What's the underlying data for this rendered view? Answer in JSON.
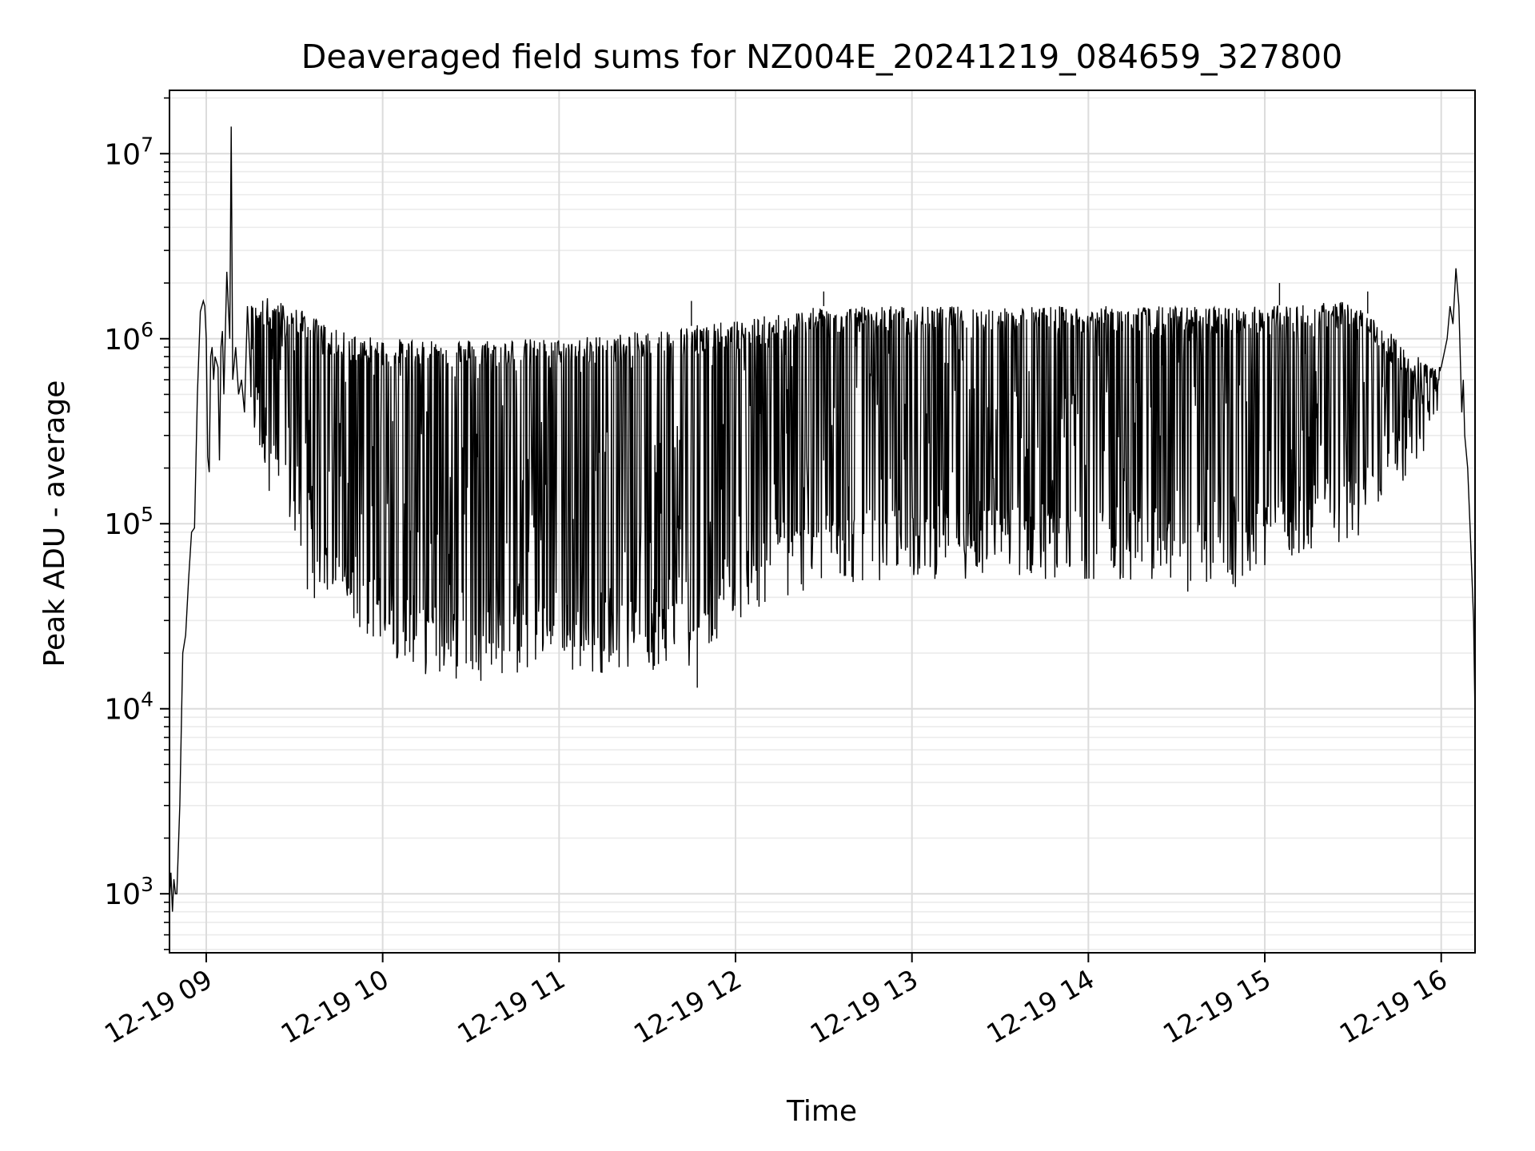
{
  "chart_data": {
    "type": "line",
    "title": "Deaveraged field sums for NZ004E_20241219_084659_327800",
    "xlabel": "Time",
    "ylabel": "Peak ADU - average",
    "y_scale": "log",
    "ylim": [
      480,
      22000000
    ],
    "xlim": [
      "2024-12-19 08:47:30",
      "2024-12-19 16:11:30"
    ],
    "grid": true,
    "legend": "none",
    "line_color": "#000000",
    "x_ticks": [
      {
        "value": "2024-12-19 09:00",
        "label": "12-19 09"
      },
      {
        "value": "2024-12-19 10:00",
        "label": "12-19 10"
      },
      {
        "value": "2024-12-19 11:00",
        "label": "12-19 11"
      },
      {
        "value": "2024-12-19 12:00",
        "label": "12-19 12"
      },
      {
        "value": "2024-12-19 13:00",
        "label": "12-19 13"
      },
      {
        "value": "2024-12-19 14:00",
        "label": "12-19 14"
      },
      {
        "value": "2024-12-19 15:00",
        "label": "12-19 15"
      },
      {
        "value": "2024-12-19 16:00",
        "label": "12-19 16"
      }
    ],
    "y_ticks": [
      {
        "value": 1000,
        "base": "10",
        "exp": "3"
      },
      {
        "value": 10000,
        "base": "10",
        "exp": "4"
      },
      {
        "value": 100000,
        "base": "10",
        "exp": "5"
      },
      {
        "value": 1000000,
        "base": "10",
        "exp": "6"
      },
      {
        "value": 10000000,
        "base": "10",
        "exp": "7"
      }
    ],
    "series": [
      {
        "x": [
          "2024-12-19 08:47:30",
          "2024-12-19 08:48:00",
          "2024-12-19 08:48:30",
          "2024-12-19 08:49:00",
          "2024-12-19 08:49:30",
          "2024-12-19 08:50:00",
          "2024-12-19 08:51:00",
          "2024-12-19 08:52:00",
          "2024-12-19 08:53:00",
          "2024-12-19 08:54:00",
          "2024-12-19 08:55:00",
          "2024-12-19 08:56:00",
          "2024-12-19 08:57:00",
          "2024-12-19 08:58:00",
          "2024-12-19 08:59:00",
          "2024-12-19 08:59:30",
          "2024-12-19 09:00:00",
          "2024-12-19 09:00:30",
          "2024-12-19 09:01:00",
          "2024-12-19 09:01:30",
          "2024-12-19 09:02:00",
          "2024-12-19 09:02:30",
          "2024-12-19 09:03:00",
          "2024-12-19 09:04:00",
          "2024-12-19 09:04:30",
          "2024-12-19 09:05:00",
          "2024-12-19 09:05:30",
          "2024-12-19 09:06:00",
          "2024-12-19 09:07:00",
          "2024-12-19 09:08:00",
          "2024-12-19 09:08:30",
          "2024-12-19 09:09:00",
          "2024-12-19 09:10:00",
          "2024-12-19 09:11:00",
          "2024-12-19 09:12:00",
          "2024-12-19 09:13:00",
          "2024-12-19 09:14:00",
          "2024-12-19 09:15:00"
        ],
        "y": [
          900,
          1300,
          800,
          1200,
          1000,
          1000,
          3000,
          20000,
          25000,
          50000,
          90000,
          95000,
          500000,
          1400000,
          1600000,
          1500000,
          1000000,
          230000,
          190000,
          800000,
          900000,
          600000,
          800000,
          700000,
          220000,
          900000,
          1100000,
          500000,
          2300000,
          1000000,
          14000000,
          600000,
          900000,
          500000,
          600000,
          400000,
          1500000,
          700000
        ]
      }
    ],
    "envelope": {
      "description_free": true,
      "upper": [
        {
          "x": "2024-12-19 09:15",
          "y": 1500000
        },
        {
          "x": "2024-12-19 09:20",
          "y": 1700000
        },
        {
          "x": "2024-12-19 09:30",
          "y": 1500000
        },
        {
          "x": "2024-12-19 09:45",
          "y": 1100000
        },
        {
          "x": "2024-12-19 10:00",
          "y": 1000000
        },
        {
          "x": "2024-12-19 11:00",
          "y": 1000000
        },
        {
          "x": "2024-12-19 11:30",
          "y": 1100000
        },
        {
          "x": "2024-12-19 12:00",
          "y": 1250000
        },
        {
          "x": "2024-12-19 12:30",
          "y": 1500000
        },
        {
          "x": "2024-12-19 13:00",
          "y": 1500000
        },
        {
          "x": "2024-12-19 14:00",
          "y": 1500000
        },
        {
          "x": "2024-12-19 15:00",
          "y": 1500000
        },
        {
          "x": "2024-12-19 15:30",
          "y": 1600000
        },
        {
          "x": "2024-12-19 15:45",
          "y": 1000000
        },
        {
          "x": "2024-12-19 16:00",
          "y": 700000
        }
      ],
      "lower": [
        {
          "x": "2024-12-19 09:15",
          "y": 300000
        },
        {
          "x": "2024-12-19 09:25",
          "y": 100000
        },
        {
          "x": "2024-12-19 09:35",
          "y": 40000
        },
        {
          "x": "2024-12-19 09:50",
          "y": 25000
        },
        {
          "x": "2024-12-19 10:15",
          "y": 15000
        },
        {
          "x": "2024-12-19 10:30",
          "y": 14000
        },
        {
          "x": "2024-12-19 11:00",
          "y": 15000
        },
        {
          "x": "2024-12-19 11:30",
          "y": 16000
        },
        {
          "x": "2024-12-19 11:45",
          "y": 17000
        },
        {
          "x": "2024-12-19 12:00",
          "y": 30000
        },
        {
          "x": "2024-12-19 12:30",
          "y": 45000
        },
        {
          "x": "2024-12-19 13:00",
          "y": 50000
        },
        {
          "x": "2024-12-19 13:30",
          "y": 50000
        },
        {
          "x": "2024-12-19 14:00",
          "y": 50000
        },
        {
          "x": "2024-12-19 14:30",
          "y": 45000
        },
        {
          "x": "2024-12-19 14:45",
          "y": 35000
        },
        {
          "x": "2024-12-19 15:00",
          "y": 55000
        },
        {
          "x": "2024-12-19 15:30",
          "y": 80000
        },
        {
          "x": "2024-12-19 15:45",
          "y": 150000
        },
        {
          "x": "2024-12-19 16:00",
          "y": 300000
        }
      ],
      "spikes": [
        {
          "x": "2024-12-19 12:30",
          "y": 1800000
        },
        {
          "x": "2024-12-19 15:05",
          "y": 2000000
        },
        {
          "x": "2024-12-19 15:35",
          "y": 1800000
        },
        {
          "x": "2024-12-19 11:45",
          "y": 1600000
        },
        {
          "x": "2024-12-19 11:47",
          "y": 13000
        }
      ]
    },
    "tail": {
      "x": [
        "2024-12-19 16:00:00",
        "2024-12-19 16:02:00",
        "2024-12-19 16:03:00",
        "2024-12-19 16:04:00",
        "2024-12-19 16:05:00",
        "2024-12-19 16:06:00",
        "2024-12-19 16:07:00",
        "2024-12-19 16:07:30",
        "2024-12-19 16:08:00",
        "2024-12-19 16:09:00",
        "2024-12-19 16:10:00",
        "2024-12-19 16:11:00",
        "2024-12-19 16:11:30"
      ],
      "y": [
        700000,
        1000000,
        1500000,
        1200000,
        2400000,
        1500000,
        400000,
        600000,
        300000,
        200000,
        80000,
        30000,
        9000
      ]
    }
  }
}
